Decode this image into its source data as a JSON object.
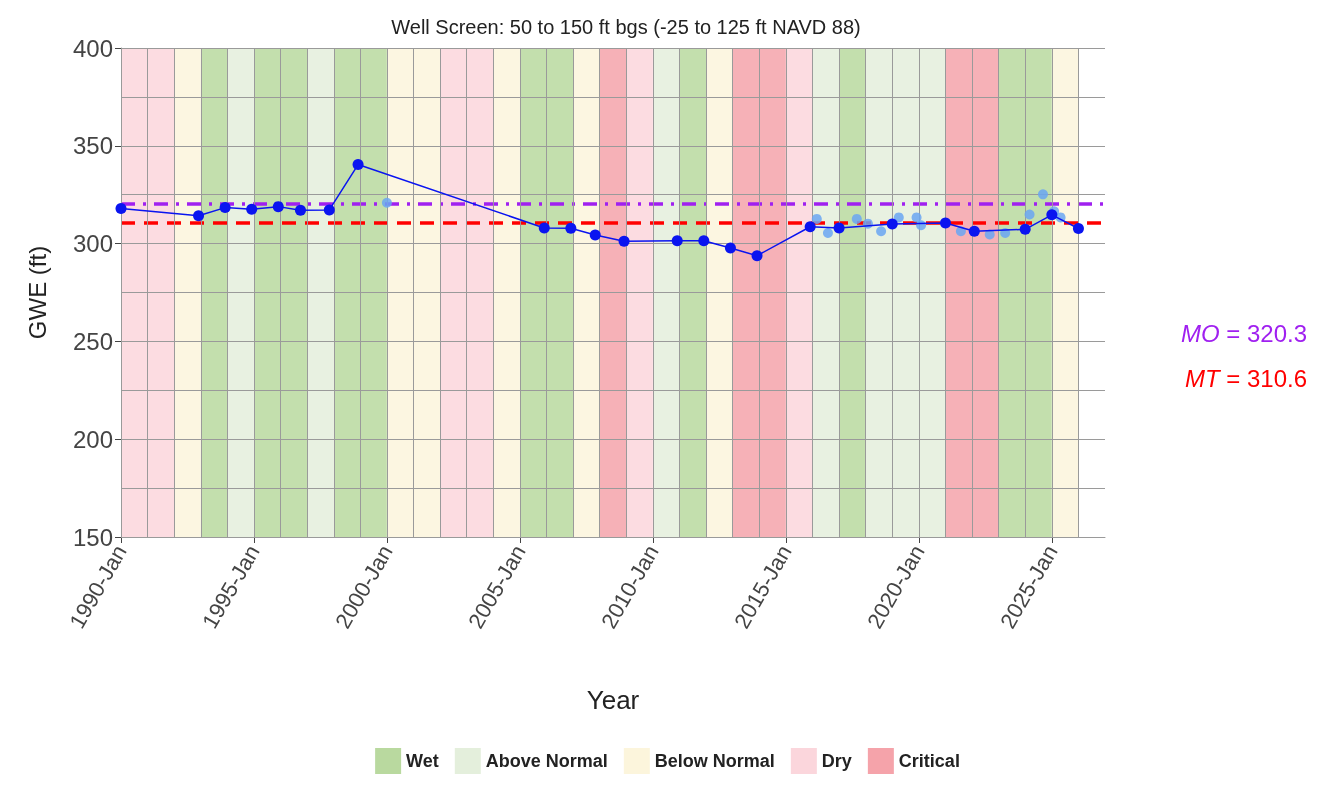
{
  "chart_data": {
    "type": "line",
    "title": "Well Screen: 50 to 150 ft bgs (-25 to 125 ft NAVD 88)",
    "xlabel": "Year",
    "ylabel": "GWE (ft)",
    "xlim": [
      "1990-01",
      "2027-01"
    ],
    "xticks": [
      {
        "value": "1990-01",
        "label": "1990-Jan"
      },
      {
        "value": "1991-01",
        "label": null
      },
      {
        "value": "1992-01",
        "label": null
      },
      {
        "value": "1993-01",
        "label": null
      },
      {
        "value": "1994-01",
        "label": null
      },
      {
        "value": "1995-01",
        "label": "1995-Jan"
      },
      {
        "value": "1996-01",
        "label": null
      },
      {
        "value": "1997-01",
        "label": null
      },
      {
        "value": "1998-01",
        "label": null
      },
      {
        "value": "1999-01",
        "label": null
      },
      {
        "value": "2000-01",
        "label": "2000-Jan"
      },
      {
        "value": "2001-01",
        "label": null
      },
      {
        "value": "2002-01",
        "label": null
      },
      {
        "value": "2003-01",
        "label": null
      },
      {
        "value": "2004-01",
        "label": null
      },
      {
        "value": "2005-01",
        "label": "2005-Jan"
      },
      {
        "value": "2006-01",
        "label": null
      },
      {
        "value": "2007-01",
        "label": null
      },
      {
        "value": "2008-01",
        "label": null
      },
      {
        "value": "2009-01",
        "label": null
      },
      {
        "value": "2010-01",
        "label": "2010-Jan"
      },
      {
        "value": "2011-01",
        "label": null
      },
      {
        "value": "2012-01",
        "label": null
      },
      {
        "value": "2013-01",
        "label": null
      },
      {
        "value": "2014-01",
        "label": null
      },
      {
        "value": "2015-01",
        "label": "2015-Jan"
      },
      {
        "value": "2016-01",
        "label": null
      },
      {
        "value": "2017-01",
        "label": null
      },
      {
        "value": "2018-01",
        "label": null
      },
      {
        "value": "2019-01",
        "label": null
      },
      {
        "value": "2020-01",
        "label": "2020-Jan"
      },
      {
        "value": "2021-01",
        "label": null
      },
      {
        "value": "2022-01",
        "label": null
      },
      {
        "value": "2023-01",
        "label": null
      },
      {
        "value": "2024-01",
        "label": null
      },
      {
        "value": "2025-01",
        "label": "2025-Jan"
      },
      {
        "value": "2026-01",
        "label": null
      }
    ],
    "ylim": [
      150,
      400
    ],
    "yticks": [
      150,
      {
        "value": 175,
        "label": null
      },
      200,
      {
        "value": 225,
        "label": null
      },
      250,
      {
        "value": 275,
        "label": null
      },
      300,
      {
        "value": 325,
        "label": null
      },
      350,
      {
        "value": 375,
        "label": null
      },
      400
    ],
    "grid": true,
    "legend": "bottom",
    "series": [
      {
        "color": "#0a14f0",
        "marker": "circle",
        "line_style": "solid",
        "x": [
          "1990-01",
          "1992-12",
          "1993-12",
          "1994-12",
          "1995-12",
          "1996-10",
          "1997-11",
          "1998-12",
          "2005-12",
          "2006-12",
          "2007-11",
          "2008-12",
          "2010-12",
          "2011-12",
          "2012-12",
          "2013-12",
          "2015-12",
          "2017-01",
          "2019-01",
          "2021-01",
          "2022-02",
          "2024-01",
          "2025-01",
          "2026-01"
        ],
        "values": [
          318,
          314.2,
          318.4,
          317.6,
          318.9,
          317.1,
          317.2,
          340.4,
          308.0,
          307.8,
          304.4,
          301.2,
          301.5,
          301.5,
          297.8,
          293.8,
          308.6,
          308.0,
          310.0,
          310.5,
          306.3,
          307.3,
          314.7,
          307.7
        ]
      },
      {
        "type": "scatter",
        "color": "#6aa6f2",
        "marker": "circle",
        "x": [
          "2000-01",
          "2016-03",
          "2016-08",
          "2017-09",
          "2018-02",
          "2018-08",
          "2019-04",
          "2019-12",
          "2020-02",
          "2021-08",
          "2022-09",
          "2023-04",
          "2024-03",
          "2024-09",
          "2025-02",
          "2025-05"
        ],
        "values": [
          320.9,
          312.6,
          305.4,
          312.6,
          310.2,
          306.3,
          313.4,
          313.4,
          309.4,
          306.3,
          304.7,
          305.4,
          314.9,
          325.2,
          316.5,
          313.4
        ]
      }
    ],
    "ref_lines": [
      {
        "axis": "y",
        "value": 320.3,
        "label": "MO = 320.3",
        "color": "#a020f0",
        "line_style": "dashdot"
      },
      {
        "axis": "y",
        "value": 310.6,
        "label": "MT = 310.6",
        "color": "#ff0000",
        "line_style": "dashed"
      }
    ],
    "bands": [
      {
        "axis": "x",
        "from": "1993-01",
        "to": "1994-01",
        "label": "Wet",
        "color": "#b9d99f"
      },
      {
        "axis": "x",
        "from": "1995-01",
        "to": "1997-01",
        "color": "#b9d99f"
      },
      {
        "axis": "x",
        "from": "1998-01",
        "to": "2000-01",
        "color": "#b9d99f"
      },
      {
        "axis": "x",
        "from": "2005-01",
        "to": "2007-01",
        "color": "#b9d99f"
      },
      {
        "axis": "x",
        "from": "2011-01",
        "to": "2012-01",
        "color": "#b9d99f"
      },
      {
        "axis": "x",
        "from": "2017-01",
        "to": "2018-01",
        "color": "#b9d99f"
      },
      {
        "axis": "x",
        "from": "2023-01",
        "to": "2025-01",
        "color": "#b9d99f"
      },
      {
        "axis": "x",
        "from": "1994-01",
        "to": "1995-01",
        "label": "Above Normal",
        "color": "#e4efdc"
      },
      {
        "axis": "x",
        "from": "1997-01",
        "to": "1998-01",
        "color": "#e4efdc"
      },
      {
        "axis": "x",
        "from": "2010-01",
        "to": "2011-01",
        "color": "#e4efdc"
      },
      {
        "axis": "x",
        "from": "2016-01",
        "to": "2017-01",
        "color": "#e4efdc"
      },
      {
        "axis": "x",
        "from": "2018-01",
        "to": "2021-01",
        "color": "#e4efdc"
      },
      {
        "axis": "x",
        "from": "1992-01",
        "to": "1993-01",
        "label": "Below Normal",
        "color": "#fcf5dc"
      },
      {
        "axis": "x",
        "from": "2000-01",
        "to": "2002-01",
        "color": "#fcf5dc"
      },
      {
        "axis": "x",
        "from": "2004-01",
        "to": "2005-01",
        "color": "#fcf5dc"
      },
      {
        "axis": "x",
        "from": "2007-01",
        "to": "2008-01",
        "color": "#fcf5dc"
      },
      {
        "axis": "x",
        "from": "2012-01",
        "to": "2013-01",
        "color": "#fcf5dc"
      },
      {
        "axis": "x",
        "from": "2025-01",
        "to": "2026-01",
        "color": "#fcf5dc"
      },
      {
        "axis": "x",
        "from": "1990-01",
        "to": "1992-01",
        "label": "Dry",
        "color": "#fbd6dc"
      },
      {
        "axis": "x",
        "from": "2002-01",
        "to": "2004-01",
        "color": "#fbd6dc"
      },
      {
        "axis": "x",
        "from": "2009-01",
        "to": "2010-01",
        "color": "#fbd6dc"
      },
      {
        "axis": "x",
        "from": "2015-01",
        "to": "2016-01",
        "color": "#fbd6dc"
      },
      {
        "axis": "x",
        "from": "2008-01",
        "to": "2009-01",
        "label": "Critical",
        "color": "#f5a3aa"
      },
      {
        "axis": "x",
        "from": "2013-01",
        "to": "2015-01",
        "color": "#f5a3aa"
      },
      {
        "axis": "x",
        "from": "2021-01",
        "to": "2023-01",
        "color": "#f5a3aa"
      }
    ]
  }
}
